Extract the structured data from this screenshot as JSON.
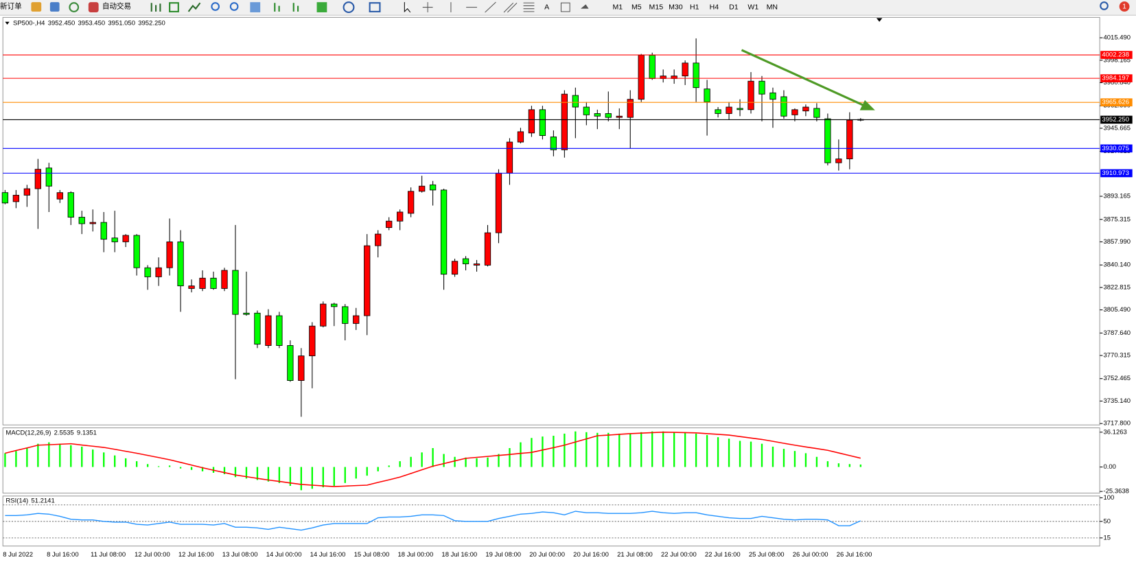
{
  "toolbar": {
    "new_order": "新订单",
    "auto_trading": "自动交易",
    "text_tool": "A",
    "timeframes": [
      "M1",
      "M5",
      "M15",
      "M30",
      "H1",
      "H4",
      "D1",
      "W1",
      "MN"
    ],
    "badge": "1"
  },
  "chart_data": [
    {
      "type": "candlestick",
      "title": "SP500-,H4",
      "header_values": [
        "3952.450",
        "3953.450",
        "3951.050",
        "3952.250"
      ],
      "up_color": "#ff0000",
      "down_color": "#00ff00",
      "categories": [
        "8 Jul 2022",
        null,
        null,
        null,
        "8 Jul 16:00",
        null,
        null,
        null,
        "11 Jul 08:00",
        null,
        null,
        null,
        "12 Jul 00:00",
        null,
        null,
        null,
        "12 Jul 16:00",
        null,
        null,
        null,
        "13 Jul 08:00",
        null,
        null,
        null,
        "14 Jul 00:00",
        null,
        null,
        null,
        "14 Jul 16:00",
        null,
        null,
        null,
        "15 Jul 08:00",
        null,
        null,
        null,
        "18 Jul 00:00",
        null,
        null,
        null,
        "18 Jul 16:00",
        null,
        null,
        null,
        "19 Jul 08:00",
        null,
        null,
        null,
        "20 Jul 00:00",
        null,
        null,
        null,
        "20 Jul 16:00",
        null,
        null,
        null,
        "21 Jul 08:00",
        null,
        null,
        null,
        "22 Jul 00:00",
        null,
        null,
        null,
        "22 Jul 16:00",
        null,
        null,
        null,
        "25 Jul 08:00",
        null,
        null,
        null,
        "26 Jul 00:00",
        null,
        null,
        null,
        "26 Jul 16:00",
        null,
        null
      ],
      "ohlc": [
        [
          3896,
          3898,
          3887,
          3888
        ],
        [
          3889,
          3898,
          3884,
          3894
        ],
        [
          3894,
          3902,
          3885,
          3899
        ],
        [
          3899,
          3922,
          3868,
          3914
        ],
        [
          3915,
          3919,
          3881,
          3901
        ],
        [
          3891,
          3898,
          3888,
          3896
        ],
        [
          3896,
          3897,
          3871,
          3877
        ],
        [
          3877,
          3882,
          3864,
          3872
        ],
        [
          3872,
          3883,
          3866,
          3873
        ],
        [
          3873,
          3881,
          3850,
          3860
        ],
        [
          3861,
          3882,
          3850,
          3858
        ],
        [
          3858,
          3864,
          3854,
          3863
        ],
        [
          3863,
          3864,
          3832,
          3838
        ],
        [
          3838,
          3840,
          3821,
          3831
        ],
        [
          3831,
          3846,
          3824,
          3838
        ],
        [
          3838,
          3876,
          3832,
          3858
        ],
        [
          3858,
          3867,
          3804,
          3824
        ],
        [
          3822,
          3829,
          3819,
          3824
        ],
        [
          3822,
          3836,
          3820,
          3830
        ],
        [
          3830,
          3835,
          3821,
          3822
        ],
        [
          3822,
          3838,
          3820,
          3836
        ],
        [
          3836,
          3871,
          3752,
          3802
        ],
        [
          3803,
          3835,
          3801,
          3802
        ],
        [
          3803,
          3805,
          3776,
          3779
        ],
        [
          3778,
          3806,
          3776,
          3801
        ],
        [
          3801,
          3804,
          3776,
          3778
        ],
        [
          3778,
          3782,
          3750,
          3751
        ],
        [
          3751,
          3776,
          3723,
          3770
        ],
        [
          3770,
          3796,
          3745,
          3793
        ],
        [
          3793,
          3812,
          3792,
          3810
        ],
        [
          3810,
          3811,
          3793,
          3808
        ],
        [
          3808,
          3810,
          3782,
          3795
        ],
        [
          3795,
          3807,
          3790,
          3801
        ],
        [
          3801,
          3864,
          3786,
          3855
        ],
        [
          3855,
          3867,
          3846,
          3864
        ],
        [
          3869,
          3877,
          3867,
          3874
        ],
        [
          3874,
          3883,
          3867,
          3881
        ],
        [
          3880,
          3900,
          3877,
          3897
        ],
        [
          3897,
          3909,
          3896,
          3901
        ],
        [
          3902,
          3905,
          3886,
          3898
        ],
        [
          3898,
          3899,
          3821,
          3833
        ],
        [
          3833,
          3845,
          3831,
          3843
        ],
        [
          3845,
          3847,
          3836,
          3841
        ],
        [
          3840,
          3844,
          3835,
          3841
        ],
        [
          3840,
          3871,
          3839,
          3865
        ],
        [
          3865,
          3914,
          3857,
          3911
        ],
        [
          3911,
          3938,
          3902,
          3935
        ],
        [
          3935,
          3946,
          3934,
          3943
        ],
        [
          3942,
          3963,
          3939,
          3960
        ],
        [
          3960,
          3963,
          3937,
          3940
        ],
        [
          3939,
          3944,
          3924,
          3929
        ],
        [
          3929,
          3975,
          3923,
          3972
        ],
        [
          3971,
          3977,
          3938,
          3962
        ],
        [
          3962,
          3966,
          3948,
          3956
        ],
        [
          3957,
          3960,
          3945,
          3955
        ],
        [
          3957,
          3974,
          3951,
          3954
        ],
        [
          3954,
          3961,
          3945,
          3955
        ],
        [
          3954,
          3975,
          3930,
          3968
        ],
        [
          3968,
          4003,
          3966,
          4002
        ],
        [
          4002,
          4004,
          3983,
          3984
        ],
        [
          3984,
          3991,
          3981,
          3986
        ],
        [
          3984,
          3991,
          3980,
          3986
        ],
        [
          3986,
          3998,
          3979,
          3996
        ],
        [
          3996,
          4015,
          3966,
          3977
        ],
        [
          3976,
          3983,
          3940,
          3966
        ],
        [
          3960,
          3962,
          3954,
          3957
        ],
        [
          3957,
          3966,
          3952,
          3962
        ],
        [
          3961,
          3968,
          3955,
          3960
        ],
        [
          3960,
          3989,
          3957,
          3982
        ],
        [
          3982,
          3986,
          3951,
          3972
        ],
        [
          3973,
          3977,
          3946,
          3968
        ],
        [
          3970,
          3975,
          3953,
          3955
        ],
        [
          3956,
          3961,
          3951,
          3960
        ],
        [
          3959,
          3964,
          3955,
          3962
        ],
        [
          3961,
          3965,
          3951,
          3954
        ],
        [
          3953,
          3957,
          3917,
          3919
        ],
        [
          3919,
          3937,
          3913,
          3922
        ],
        [
          3922,
          3958,
          3914,
          3952
        ],
        [
          3952.45,
          3953.45,
          3951.05,
          3952.25
        ]
      ],
      "ylim": [
        3716.7,
        4031.2
      ],
      "yticks": [
        {
          "value": 4015.49,
          "label": "4015.490"
        },
        3998.165,
        {
          "value": 3980.84,
          "label": "3980.840"
        },
        {
          "value": 3962.99,
          "label": "3962.990"
        },
        3945.665,
        3927.815,
        3893.165,
        3875.315,
        {
          "value": 3857.99,
          "label": "3857.990"
        },
        {
          "value": 3840.14,
          "label": "3840.140"
        },
        3822.815,
        {
          "value": 3805.49,
          "label": "3805.490"
        },
        {
          "value": 3787.64,
          "label": "3787.640"
        },
        3770.315,
        3752.465,
        {
          "value": 3735.14,
          "label": "3735.140"
        },
        {
          "value": 3717.8,
          "label": "3717.800"
        }
      ],
      "levels": [
        {
          "price": 4002.238,
          "color": "#ff0000"
        },
        {
          "price": 3984.197,
          "color": "#ff0000"
        },
        {
          "price": 3965.626,
          "color": "#ff8c00"
        },
        {
          "price": 3952.25,
          "label": "3952.250",
          "color": "#000000"
        },
        {
          "price": 3930.075,
          "color": "#0000ff"
        },
        {
          "price": 3910.973,
          "color": "#0000ff"
        }
      ]
    },
    {
      "type": "bar",
      "title": "MACD(12,26,9)",
      "color": "#00ff00",
      "values": [
        14.3,
        16.6,
        19.6,
        24.1,
        25.6,
        24.1,
        22.6,
        21.1,
        18.1,
        15.1,
        12.0,
        9.0,
        6.0,
        3.0,
        0.8,
        1.5,
        -1.5,
        -3.0,
        -4.5,
        -6.0,
        -7.5,
        -10.5,
        -12.0,
        -13.5,
        -15.1,
        -16.6,
        -19.6,
        -24.1,
        -22.6,
        -21.1,
        -19.6,
        -16.6,
        -12.0,
        -9.0,
        -4.5,
        1.5,
        6.0,
        10.5,
        15.1,
        19.6,
        13.5,
        10.5,
        9.8,
        9.0,
        9.8,
        13.5,
        19.6,
        25.6,
        30.1,
        31.6,
        32.4,
        34.6,
        36.9,
        36.1,
        35.4,
        35.4,
        34.6,
        34.6,
        36.1,
        36.9,
        36.9,
        36.1,
        36.1,
        34.6,
        33.1,
        30.9,
        29.4,
        27.1,
        26.3,
        24.1,
        21.1,
        18.8,
        16.6,
        14.3,
        10.5,
        6.0,
        3.8,
        3.0,
        2.5535
      ],
      "line": {
        "color": "#ff0000",
        "values": [
          14.3,
          17.1,
          19.8,
          22.6,
          23.1,
          23.6,
          24.1,
          22.8,
          21.6,
          20.3,
          18.3,
          16.3,
          14.3,
          12.0,
          9.8,
          7.5,
          4.8,
          2.0,
          -0.8,
          -3.3,
          -5.8,
          -8.3,
          -10.0,
          -11.8,
          -13.5,
          -15.0,
          -16.6,
          -18.1,
          -18.8,
          -19.6,
          -20.3,
          -19.8,
          -19.3,
          -18.8,
          -16.0,
          -13.3,
          -10.5,
          -6.7,
          -2.9,
          0.8,
          3.5,
          6.3,
          9.0,
          10.0,
          11.0,
          12.0,
          13.0,
          14.1,
          15.1,
          17.6,
          20.1,
          22.6,
          25.9,
          29.1,
          32.4,
          33.1,
          33.9,
          34.6,
          35.1,
          35.6,
          36.1,
          35.9,
          35.6,
          35.4,
          34.6,
          33.9,
          33.1,
          31.6,
          30.1,
          28.6,
          26.6,
          24.6,
          22.6,
          20.8,
          19.1,
          17.3,
          14.6,
          11.9,
          9.1351
        ]
      },
      "ylim": [
        -27.1,
        40.6
      ],
      "yticks": [
        36.1263,
        {
          "value": 0,
          "label": "0.00"
        },
        -25.3638
      ]
    },
    {
      "type": "line",
      "title": "RSI(14)",
      "color": "#1e90ff",
      "values": [
        62.3,
        62.3,
        63.8,
        66.9,
        65.4,
        60.8,
        54.6,
        53.1,
        53.1,
        50.0,
        48.5,
        48.5,
        43.8,
        42.3,
        45.4,
        48.5,
        43.8,
        43.8,
        43.8,
        42.3,
        45.4,
        37.7,
        37.7,
        36.2,
        33.1,
        37.7,
        34.6,
        31.5,
        36.2,
        42.3,
        45.4,
        45.4,
        45.4,
        45.4,
        57.7,
        59.2,
        59.2,
        60.8,
        63.8,
        63.8,
        62.3,
        51.5,
        50.0,
        50.0,
        50.0,
        56.2,
        60.8,
        65.4,
        66.9,
        70.0,
        68.5,
        63.8,
        71.5,
        68.5,
        68.5,
        66.9,
        66.9,
        66.9,
        68.5,
        71.5,
        68.5,
        66.9,
        68.5,
        68.5,
        63.8,
        60.8,
        57.7,
        56.2,
        56.2,
        60.8,
        57.7,
        54.6,
        53.1,
        54.6,
        54.6,
        53.1,
        40.8,
        40.8,
        51.2141
      ],
      "ylim": [
        -2.3,
        103.8
      ],
      "yticks": [
        100,
        50,
        15
      ],
      "levels": [
        85,
        50,
        15
      ]
    }
  ]
}
